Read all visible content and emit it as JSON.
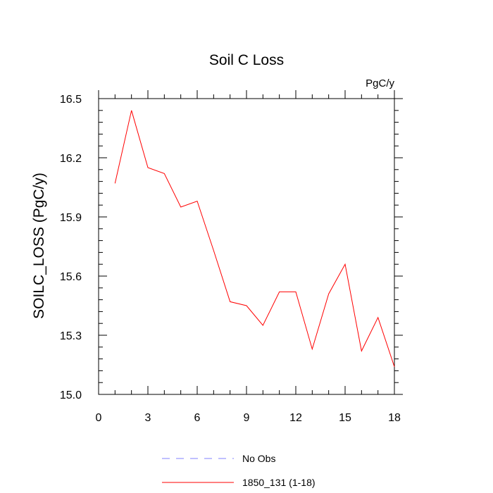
{
  "chart_data": {
    "type": "line",
    "title": "Soil C Loss",
    "units_label": "PgC/y",
    "xlabel": "",
    "ylabel": "SOILC_LOSS  (PgC/y)",
    "xlim": [
      0,
      18
    ],
    "ylim": [
      15.0,
      16.5
    ],
    "xticks": [
      0,
      3,
      6,
      9,
      12,
      15,
      18
    ],
    "xtick_labels": [
      "0",
      "3",
      "6",
      "9",
      "12",
      "15",
      "18"
    ],
    "yticks": [
      15.0,
      15.3,
      15.6,
      15.9,
      16.2,
      16.5
    ],
    "ytick_labels": [
      "15.0",
      "15.3",
      "15.6",
      "15.9",
      "16.2",
      "16.5"
    ],
    "grid": false,
    "legend_position": "bottom",
    "series": [
      {
        "name": "1850_131 (1-18)",
        "color": "#ff0000",
        "style": "solid",
        "x": [
          1,
          2,
          3,
          4,
          5,
          6,
          7,
          8,
          9,
          10,
          11,
          12,
          13,
          14,
          15,
          16,
          17,
          18
        ],
        "y": [
          16.07,
          16.44,
          16.15,
          16.12,
          15.95,
          15.98,
          15.73,
          15.47,
          15.45,
          15.35,
          15.52,
          15.52,
          15.23,
          15.51,
          15.66,
          15.22,
          15.39,
          15.14
        ]
      }
    ],
    "legend": [
      {
        "label": "No Obs",
        "color": "#8080ff",
        "style": "dashed"
      },
      {
        "label": "1850_131 (1-18)",
        "color": "#ff0000",
        "style": "solid"
      }
    ]
  }
}
